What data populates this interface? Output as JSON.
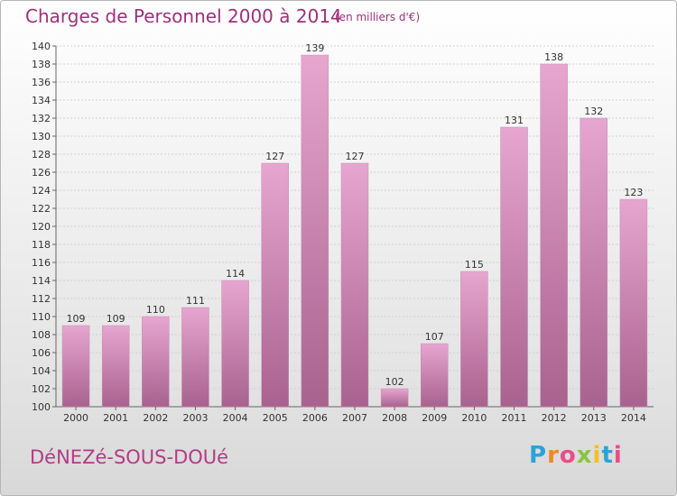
{
  "header": {
    "title": "Charges de Personnel 2000 à 2014",
    "unit": "(en milliers d'€)"
  },
  "footer": {
    "location": "DéNEZé-SOUS-DOUé",
    "logo_letters": [
      "P",
      "r",
      "o",
      "x",
      "i",
      "t",
      "i"
    ]
  },
  "colors": {
    "bar_light": "#e6a6cf",
    "bar_dark": "#a8628e",
    "title": "#a0307a"
  },
  "chart_data": {
    "type": "bar",
    "title": "Charges de Personnel 2000 à 2014",
    "subtitle": "(en milliers d'€)",
    "xlabel": "",
    "ylabel": "",
    "categories": [
      "2000",
      "2001",
      "2002",
      "2003",
      "2004",
      "2005",
      "2006",
      "2007",
      "2008",
      "2009",
      "2010",
      "2011",
      "2012",
      "2013",
      "2014"
    ],
    "values": [
      109,
      109,
      110,
      111,
      114,
      127,
      139,
      127,
      102,
      107,
      115,
      131,
      138,
      132,
      123
    ],
    "ylim": [
      100,
      140
    ],
    "ytick_step": 2,
    "grid": true,
    "legend": "none"
  }
}
